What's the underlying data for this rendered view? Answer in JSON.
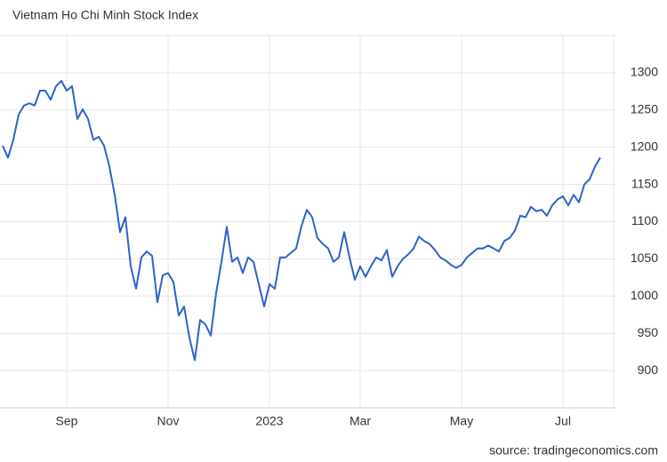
{
  "chart_data": {
    "type": "line",
    "title": "Vietnam Ho Chi Minh Stock Index",
    "source": "source: tradingeconomics.com",
    "categories": [
      null,
      null,
      null,
      null,
      null,
      null,
      null,
      null,
      null,
      null,
      null,
      null,
      "Sep",
      null,
      null,
      null,
      null,
      null,
      null,
      null,
      null,
      null,
      null,
      null,
      null,
      null,
      null,
      null,
      null,
      null,
      null,
      "Nov",
      null,
      null,
      null,
      null,
      null,
      null,
      null,
      null,
      null,
      null,
      null,
      null,
      null,
      null,
      null,
      null,
      null,
      null,
      "2023",
      null,
      null,
      null,
      null,
      null,
      null,
      null,
      null,
      null,
      null,
      null,
      null,
      null,
      null,
      null,
      null,
      "Mar",
      null,
      null,
      null,
      null,
      null,
      null,
      null,
      null,
      null,
      null,
      null,
      null,
      null,
      null,
      null,
      null,
      null,
      null,
      "May",
      null,
      null,
      null,
      null,
      null,
      null,
      null,
      null,
      null,
      null,
      null,
      null,
      null,
      null,
      null,
      null,
      null,
      null,
      "Jul",
      null,
      null,
      null,
      null,
      null,
      null,
      null
    ],
    "series": [
      {
        "name": "Vietnam Ho Chi Minh Stock Index",
        "color": "#2e62c9",
        "values": [
          1202,
          1186,
          1210,
          1244,
          1256,
          1259,
          1256,
          1276,
          1276,
          1264,
          1282,
          1289,
          1276,
          1282,
          1238,
          1251,
          1238,
          1210,
          1214,
          1202,
          1174,
          1136,
          1086,
          1106,
          1040,
          1010,
          1052,
          1060,
          1054,
          992,
          1028,
          1031,
          1019,
          974,
          986,
          944,
          914,
          968,
          962,
          947,
          1004,
          1046,
          1093,
          1046,
          1052,
          1031,
          1052,
          1046,
          1016,
          986,
          1016,
          1010,
          1052,
          1052,
          1058,
          1064,
          1094,
          1116,
          1106,
          1078,
          1070,
          1064,
          1046,
          1052,
          1086,
          1052,
          1022,
          1040,
          1026,
          1040,
          1052,
          1048,
          1062,
          1026,
          1040,
          1050,
          1056,
          1064,
          1080,
          1074,
          1070,
          1062,
          1052,
          1048,
          1042,
          1038,
          1042,
          1052,
          1058,
          1064,
          1064,
          1068,
          1064,
          1060,
          1074,
          1078,
          1088,
          1108,
          1106,
          1120,
          1114,
          1116,
          1108,
          1122,
          1130,
          1134,
          1122,
          1136,
          1126,
          1150,
          1157,
          1174,
          1186
        ]
      }
    ],
    "ylim": [
      850,
      1350
    ],
    "yticks": [
      900,
      950,
      1000,
      1050,
      1100,
      1150,
      1200,
      1250,
      1300
    ],
    "grid": true
  }
}
